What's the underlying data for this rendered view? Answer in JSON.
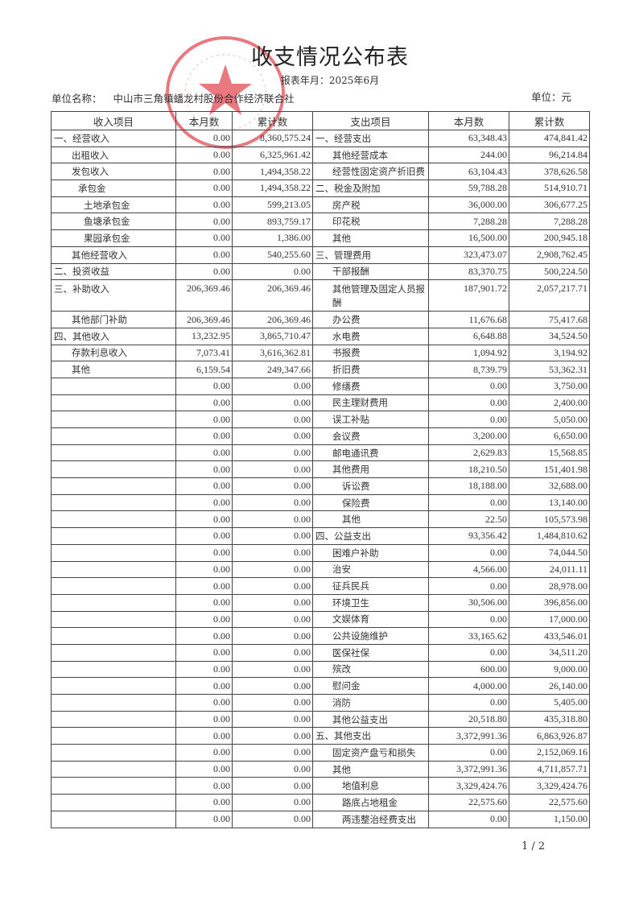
{
  "title": "收支情况公布表",
  "report_period": "报表年月：2025年6月",
  "unit_name_label": "单位名称：",
  "unit_name": "中山市三角镇蟠龙村股份合作经济联合社",
  "currency_unit": "单位：元",
  "stamp": {
    "text": "中山市三角镇蟠龙村股份合作经济联合社",
    "color": "#e0404a"
  },
  "headers": [
    "收入项目",
    "本月数",
    "累计数",
    "支出项目",
    "本月数",
    "累计数"
  ],
  "income": [
    {
      "label": "一、经营收入",
      "level": 0,
      "month": "0.00",
      "cum": "8,360,575.24"
    },
    {
      "label": "出租收入",
      "level": 1,
      "month": "0.00",
      "cum": "6,325,961.42"
    },
    {
      "label": "发包收入",
      "level": 1,
      "month": "0.00",
      "cum": "1,494,358.22"
    },
    {
      "label": "承包金",
      "level": 2,
      "month": "0.00",
      "cum": "1,494,358.22"
    },
    {
      "label": "土地承包金",
      "level": 3,
      "month": "0.00",
      "cum": "599,213.05"
    },
    {
      "label": "鱼塘承包金",
      "level": 3,
      "month": "0.00",
      "cum": "893,759.17"
    },
    {
      "label": "果园承包金",
      "level": 3,
      "month": "0.00",
      "cum": "1,386.00"
    },
    {
      "label": "其他经营收入",
      "level": 1,
      "month": "0.00",
      "cum": "540,255.60"
    },
    {
      "label": "二、投资收益",
      "level": 0,
      "month": "0.00",
      "cum": "0.00"
    },
    {
      "label": "三、补助收入",
      "level": 0,
      "month": "206,369.46",
      "cum": "206,369.46"
    },
    {
      "label": "其他部门补助",
      "level": 1,
      "month": "206,369.46",
      "cum": "206,369.46"
    },
    {
      "label": "四、其他收入",
      "level": 0,
      "month": "13,232.95",
      "cum": "3,865,710.47"
    },
    {
      "label": "存款利息收入",
      "level": 1,
      "month": "7,073.41",
      "cum": "3,616,362.81"
    },
    {
      "label": "其他",
      "level": 1,
      "month": "6,159.54",
      "cum": "249,347.66"
    }
  ],
  "income_blank_value": "0.00",
  "expense": [
    {
      "label": "一、经营支出",
      "level": 0,
      "month": "63,348.43",
      "cum": "474,841.42"
    },
    {
      "label": "其他经营成本",
      "level": 1,
      "month": "244.00",
      "cum": "96,214.84"
    },
    {
      "label": "经营性固定资产折旧费",
      "level": 1,
      "month": "63,104.43",
      "cum": "378,626.58"
    },
    {
      "label": "二、税金及附加",
      "level": 0,
      "month": "59,788.28",
      "cum": "514,910.71"
    },
    {
      "label": "房产税",
      "level": 1,
      "month": "36,000.00",
      "cum": "306,677.25"
    },
    {
      "label": "印花税",
      "level": 1,
      "month": "7,288.28",
      "cum": "7,288.28"
    },
    {
      "label": "其他",
      "level": 1,
      "month": "16,500.00",
      "cum": "200,945.18"
    },
    {
      "label": "三、管理费用",
      "level": 0,
      "month": "323,473.07",
      "cum": "2,908,762.45"
    },
    {
      "label": "干部报酬",
      "level": 1,
      "month": "83,370.75",
      "cum": "500,224.50"
    },
    {
      "label": "其他管理及固定人员报酬",
      "level": 1,
      "month": "187,901.72",
      "cum": "2,057,217.71"
    },
    {
      "label": "办公费",
      "level": 1,
      "month": "11,676.68",
      "cum": "75,417.68"
    },
    {
      "label": "水电费",
      "level": 1,
      "month": "6,648.88",
      "cum": "34,524.50"
    },
    {
      "label": "书报费",
      "level": 1,
      "month": "1,094.92",
      "cum": "3,194.92"
    },
    {
      "label": "折旧费",
      "level": 1,
      "month": "8,739.79",
      "cum": "53,362.31"
    },
    {
      "label": "修缮费",
      "level": 1,
      "month": "0.00",
      "cum": "3,750.00"
    },
    {
      "label": "民主理财费用",
      "level": 1,
      "month": "0.00",
      "cum": "2,400.00"
    },
    {
      "label": "误工补贴",
      "level": 1,
      "month": "0.00",
      "cum": "5,050.00"
    },
    {
      "label": "会议费",
      "level": 1,
      "month": "3,200.00",
      "cum": "6,650.00"
    },
    {
      "label": "邮电通讯费",
      "level": 1,
      "month": "2,629.83",
      "cum": "15,568.85"
    },
    {
      "label": "其他费用",
      "level": 1,
      "month": "18,210.50",
      "cum": "151,401.98"
    },
    {
      "label": "诉讼费",
      "level": 2,
      "month": "18,188.00",
      "cum": "32,688.00"
    },
    {
      "label": "保险费",
      "level": 2,
      "month": "0.00",
      "cum": "13,140.00"
    },
    {
      "label": "其他",
      "level": 2,
      "month": "22.50",
      "cum": "105,573.98"
    },
    {
      "label": "四、公益支出",
      "level": 0,
      "month": "93,356.42",
      "cum": "1,484,810.62"
    },
    {
      "label": "困难户补助",
      "level": 1,
      "month": "0.00",
      "cum": "74,044.50"
    },
    {
      "label": "治安",
      "level": 1,
      "month": "4,566.00",
      "cum": "24,011.11"
    },
    {
      "label": "征兵民兵",
      "level": 1,
      "month": "0.00",
      "cum": "28,978.00"
    },
    {
      "label": "环境卫生",
      "level": 1,
      "month": "30,506.00",
      "cum": "396,856.00"
    },
    {
      "label": "文娱体育",
      "level": 1,
      "month": "0.00",
      "cum": "17,000.00"
    },
    {
      "label": "公共设施维护",
      "level": 1,
      "month": "33,165.62",
      "cum": "433,546.01"
    },
    {
      "label": "医保社保",
      "level": 1,
      "month": "0.00",
      "cum": "34,511.20"
    },
    {
      "label": "殡改",
      "level": 1,
      "month": "600.00",
      "cum": "9,000.00"
    },
    {
      "label": "慰问金",
      "level": 1,
      "month": "4,000.00",
      "cum": "26,140.00"
    },
    {
      "label": "消防",
      "level": 1,
      "month": "0.00",
      "cum": "5,405.00"
    },
    {
      "label": "其他公益支出",
      "level": 1,
      "month": "20,518.80",
      "cum": "435,318.80"
    },
    {
      "label": "五、其他支出",
      "level": 0,
      "month": "3,372,991.36",
      "cum": "6,863,926.87"
    },
    {
      "label": "固定资产盘亏和损失",
      "level": 1,
      "month": "0.00",
      "cum": "2,152,069.16"
    },
    {
      "label": "其他",
      "level": 1,
      "month": "3,372,991.36",
      "cum": "4,711,857.71"
    },
    {
      "label": "地值利息",
      "level": 2,
      "month": "3,329,424.76",
      "cum": "3,329,424.76"
    },
    {
      "label": "路底占地租金",
      "level": 2,
      "month": "22,575.60",
      "cum": "22,575.60"
    },
    {
      "label": "两违整治经费支出",
      "level": 2,
      "month": "0.00",
      "cum": "1,150.00"
    }
  ],
  "page_number": "1 / 2"
}
